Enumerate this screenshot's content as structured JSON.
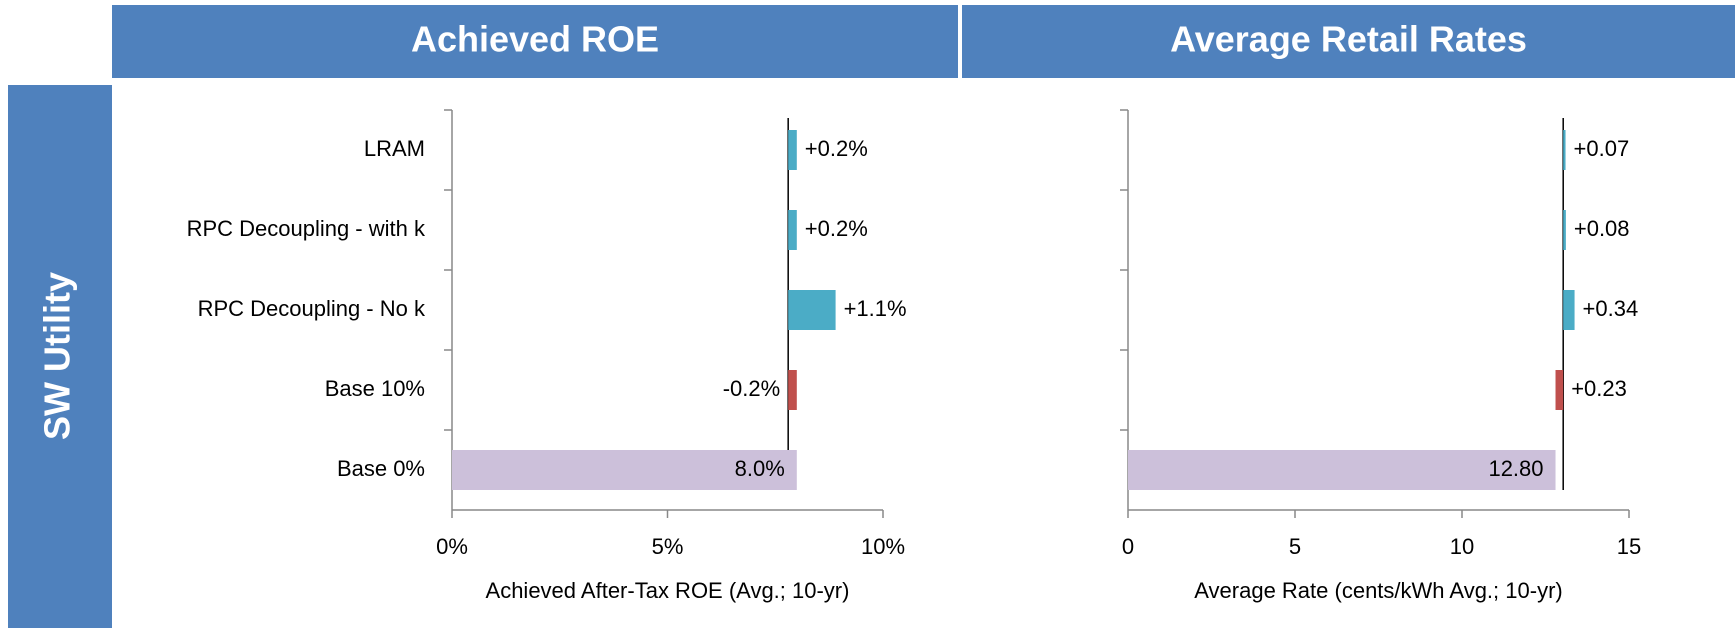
{
  "row_label": "SW Utility",
  "chart_data": [
    {
      "type": "waterfall",
      "title": "Achieved ROE",
      "x_label": "Achieved After-Tax ROE (Avg.; 10-yr)",
      "categories": [
        "LRAM",
        "RPC Decoupling - with k",
        "RPC Decoupling - No k",
        "Base 10%",
        "Base 0%"
      ],
      "values": [
        0.2,
        0.2,
        1.1,
        -0.2,
        8.0
      ],
      "value_labels": [
        "+0.2%",
        "+0.2%",
        "+1.1%",
        "-0.2%",
        "8.0%"
      ],
      "colors": [
        "#4bacc6",
        "#4bacc6",
        "#4bacc6",
        "#c0504d",
        "#ccc0da"
      ],
      "xlim": [
        0,
        10
      ],
      "xticks": [
        {
          "value": 0,
          "label": "0%"
        },
        {
          "value": 5,
          "label": "5%"
        },
        {
          "value": 10,
          "label": "10%"
        }
      ]
    },
    {
      "type": "waterfall",
      "title": "Average Retail Rates",
      "x_label": "Average Rate (cents/kWh Avg.; 10-yr)",
      "values": [
        0.07,
        0.08,
        0.34,
        0.23,
        12.8
      ],
      "value_labels": [
        "+0.07",
        "+0.08",
        "+0.34",
        "+0.23",
        "12.80"
      ],
      "colors": [
        "#4bacc6",
        "#4bacc6",
        "#4bacc6",
        "#c0504d",
        "#ccc0da"
      ],
      "xlim": [
        0,
        15
      ],
      "xticks": [
        0,
        5,
        10,
        15
      ]
    }
  ]
}
